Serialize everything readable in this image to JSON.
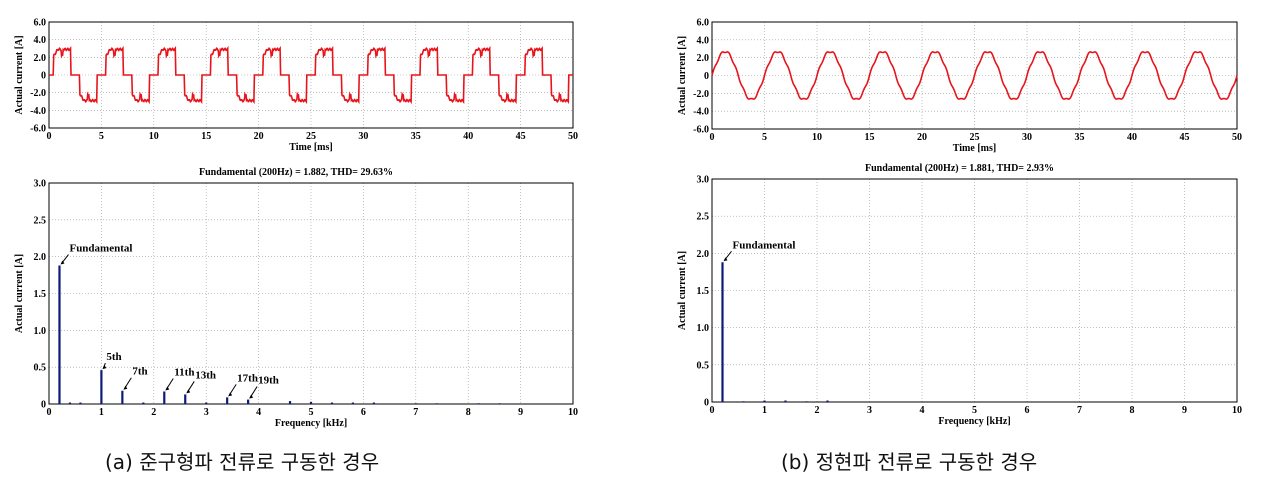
{
  "colors": {
    "waveform": "#e8141b",
    "spectrum": "#0d1a7a",
    "grid": "#9a9a9a"
  },
  "captions": {
    "a": "(a) 준구형파 전류로 구동한 경우",
    "b": "(b) 정현파 전류로 구동한 경우"
  },
  "chart_data": [
    {
      "id": "a_time",
      "type": "line",
      "title": "",
      "xlabel": "Time [ms]",
      "ylabel": "Actual current [A]",
      "xlim": [
        0,
        50
      ],
      "ylim": [
        -6,
        6
      ],
      "xticks": [
        "0",
        "5",
        "10",
        "15",
        "20",
        "25",
        "30",
        "35",
        "40",
        "45",
        "50"
      ],
      "yticks": [
        "6.0",
        "4.0",
        "2.0",
        "0",
        "-2.0",
        "-4.0",
        "-6.0"
      ],
      "grid": true,
      "waveform": "quasi-square",
      "period_ms": 5,
      "amplitude": 2.9
    },
    {
      "id": "a_fft",
      "type": "bar",
      "title": "Fundamental (200Hz) = 1.882, THD= 29.63%",
      "xlabel": "Frequency [kHz]",
      "ylabel": "Actual current [A]",
      "xlim": [
        0,
        10
      ],
      "ylim": [
        0,
        3
      ],
      "xticks": [
        "0",
        "1",
        "2",
        "3",
        "4",
        "5",
        "6",
        "7",
        "8",
        "9",
        "10"
      ],
      "yticks": [
        "3.0",
        "2.5",
        "2.0",
        "1.5",
        "1.0",
        "0.5",
        "0"
      ],
      "grid": true,
      "x": [
        0.2,
        0.4,
        0.6,
        1.0,
        1.4,
        1.8,
        2.2,
        2.6,
        3.0,
        3.4,
        3.8,
        4.6,
        5.0,
        5.4,
        5.8,
        6.2,
        7.0,
        7.4,
        8.2,
        8.6
      ],
      "values": [
        1.88,
        0.02,
        0.02,
        0.46,
        0.18,
        0.02,
        0.17,
        0.13,
        0.02,
        0.09,
        0.06,
        0.04,
        0.03,
        0.02,
        0.02,
        0.02,
        0.01,
        0.01,
        0.01,
        0.01
      ],
      "annotations": [
        {
          "label": "Fundamental",
          "x": 0.2,
          "y": 1.88
        },
        {
          "label": "5th",
          "x": 1.0,
          "y": 0.46
        },
        {
          "label": "7th",
          "x": 1.4,
          "y": 0.18
        },
        {
          "label": "11th",
          "x": 2.2,
          "y": 0.17
        },
        {
          "label": "13th",
          "x": 2.6,
          "y": 0.13
        },
        {
          "label": "17th",
          "x": 3.4,
          "y": 0.09
        },
        {
          "label": "19th",
          "x": 3.8,
          "y": 0.06
        }
      ]
    },
    {
      "id": "b_time",
      "type": "line",
      "title": "",
      "xlabel": "Time [ms]",
      "ylabel": "Actual current [A]",
      "xlim": [
        0,
        50
      ],
      "ylim": [
        -6,
        6
      ],
      "xticks": [
        "0",
        "5",
        "10",
        "15",
        "20",
        "25",
        "30",
        "35",
        "40",
        "45",
        "50"
      ],
      "yticks": [
        "6.0",
        "4.0",
        "2.0",
        "0",
        "-2.0",
        "-4.0",
        "-6.0"
      ],
      "grid": true,
      "waveform": "sine",
      "period_ms": 5,
      "amplitude": 2.7
    },
    {
      "id": "b_fft",
      "type": "bar",
      "title": "Fundamental (200Hz) = 1.881, THD= 2.93%",
      "xlabel": "Frequency [kHz]",
      "ylabel": "Actual current [A]",
      "xlim": [
        0,
        10
      ],
      "ylim": [
        0,
        3
      ],
      "xticks": [
        "0",
        "1",
        "2",
        "3",
        "4",
        "5",
        "6",
        "7",
        "8",
        "9",
        "10"
      ],
      "yticks": [
        "3.0",
        "2.5",
        "2.0",
        "1.5",
        "1.0",
        "0.5",
        "0"
      ],
      "grid": true,
      "x": [
        0.2,
        0.6,
        1.0,
        1.4,
        1.8,
        2.2
      ],
      "values": [
        1.88,
        0.01,
        0.02,
        0.02,
        0.01,
        0.02
      ],
      "annotations": [
        {
          "label": "Fundamental",
          "x": 0.2,
          "y": 1.88
        }
      ]
    }
  ]
}
